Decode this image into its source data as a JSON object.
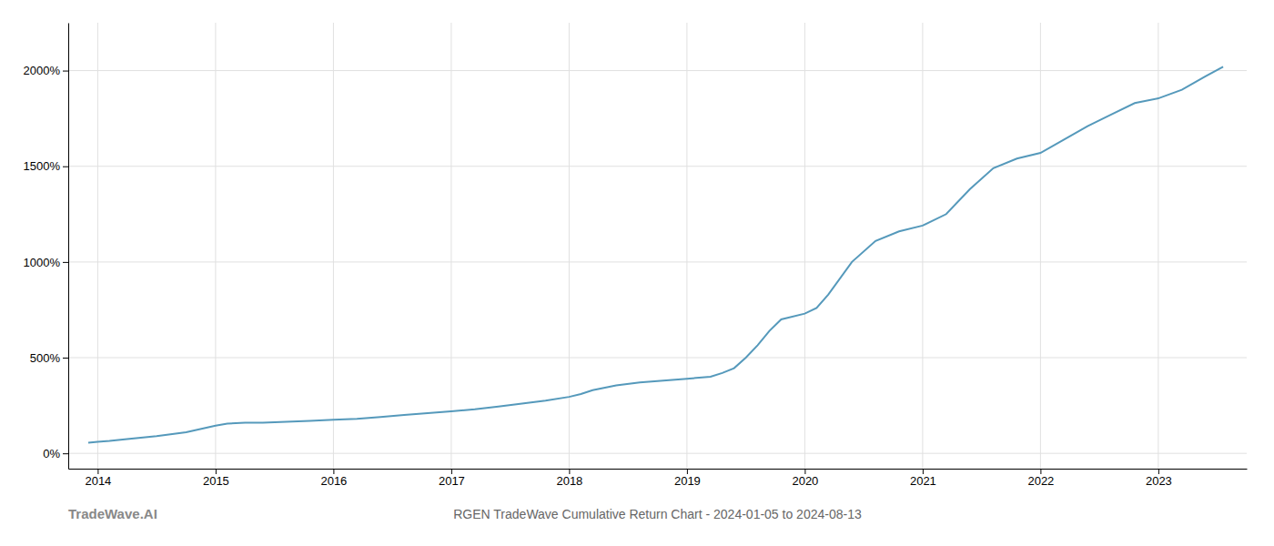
{
  "chart_data": {
    "type": "line",
    "title": "RGEN TradeWave Cumulative Return Chart - 2024-01-05 to 2024-08-13",
    "annotations": [
      "TradeWave.AI"
    ],
    "color": "#5599bb",
    "grid": true,
    "x": [
      2013.92,
      2014.0,
      2014.1,
      2014.25,
      2014.5,
      2014.75,
      2015.0,
      2015.1,
      2015.25,
      2015.4,
      2015.6,
      2015.8,
      2016.0,
      2016.2,
      2016.4,
      2016.6,
      2016.8,
      2017.0,
      2017.2,
      2017.4,
      2017.6,
      2017.8,
      2018.0,
      2018.1,
      2018.2,
      2018.4,
      2018.6,
      2018.8,
      2019.0,
      2019.2,
      2019.3,
      2019.4,
      2019.5,
      2019.6,
      2019.7,
      2019.8,
      2020.0,
      2020.1,
      2020.2,
      2020.4,
      2020.6,
      2020.8,
      2021.0,
      2021.2,
      2021.4,
      2021.6,
      2021.8,
      2022.0,
      2022.2,
      2022.4,
      2022.6,
      2022.8,
      2023.0,
      2023.2,
      2023.4,
      2023.55
    ],
    "values": [
      55,
      60,
      65,
      75,
      90,
      110,
      145,
      155,
      160,
      160,
      165,
      170,
      175,
      180,
      190,
      200,
      210,
      220,
      230,
      245,
      260,
      275,
      295,
      310,
      330,
      355,
      370,
      380,
      390,
      400,
      420,
      445,
      500,
      565,
      640,
      700,
      730,
      760,
      830,
      1000,
      1110,
      1160,
      1190,
      1250,
      1380,
      1490,
      1540,
      1570,
      1640,
      1710,
      1770,
      1830,
      1855,
      1900,
      1970,
      2020
    ],
    "xlim": [
      2013.75,
      2023.75
    ],
    "xticks": [
      2014,
      2015,
      2016,
      2017,
      2018,
      2019,
      2020,
      2021,
      2022,
      2023
    ],
    "ylim": [
      -80,
      2250
    ],
    "yticks": [
      {
        "value": 0,
        "label": "0%"
      },
      {
        "value": 500,
        "label": "500%"
      },
      {
        "value": 1000,
        "label": "1000%"
      },
      {
        "value": 1500,
        "label": "1500%"
      },
      {
        "value": 2000,
        "label": "2000%"
      }
    ]
  }
}
